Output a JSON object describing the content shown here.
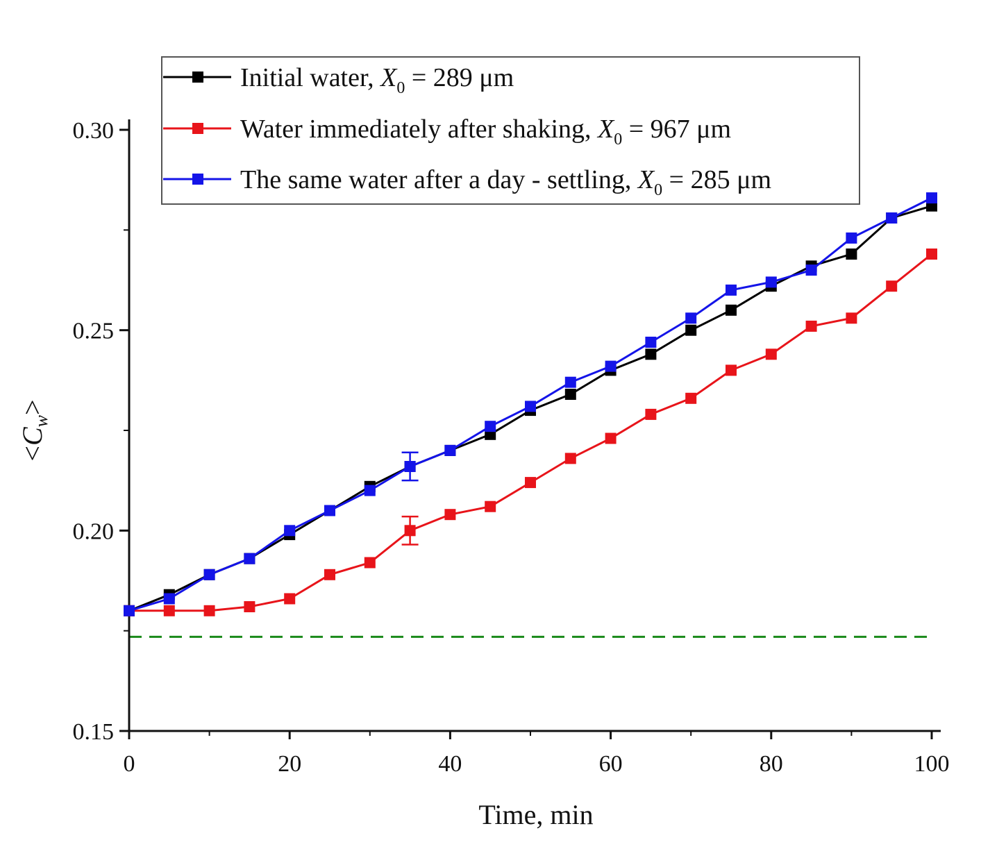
{
  "chart_data": {
    "type": "line",
    "xlabel": "Time, min",
    "ylabel": {
      "prefix": "<",
      "var": "C",
      "sub": "w",
      "suffix": ">"
    },
    "xlim": [
      0,
      100
    ],
    "ylim": [
      0.15,
      0.3
    ],
    "x_ticks": [
      "0",
      "20",
      "40",
      "60",
      "80",
      "100"
    ],
    "y_ticks": [
      "0.15",
      "0.20",
      "0.25",
      "0.30"
    ],
    "legend_position": "top",
    "x": [
      0,
      5,
      10,
      15,
      20,
      25,
      30,
      35,
      40,
      45,
      50,
      55,
      60,
      65,
      70,
      75,
      80,
      85,
      90,
      95,
      100
    ],
    "series": [
      {
        "legend": {
          "prefix": "Initial water, ",
          "var": "X",
          "sub": "0",
          "suffix": " = 289 μm"
        },
        "color": "#000000",
        "values": [
          0.18,
          0.184,
          0.189,
          0.193,
          0.199,
          0.205,
          0.211,
          0.216,
          0.22,
          0.224,
          0.23,
          0.234,
          0.24,
          0.244,
          0.25,
          0.255,
          0.261,
          0.266,
          0.269,
          0.278,
          0.281
        ],
        "error_bar": {
          "x": 35,
          "y": 0.216,
          "err": 0
        }
      },
      {
        "legend": {
          "prefix": "Water immediately after shaking, ",
          "var": "X",
          "sub": "0",
          "suffix": " = 967 μm"
        },
        "color": "#e8141a",
        "values": [
          0.18,
          0.18,
          0.18,
          0.181,
          0.183,
          0.189,
          0.192,
          0.2,
          0.204,
          0.206,
          0.212,
          0.218,
          0.223,
          0.229,
          0.233,
          0.24,
          0.244,
          0.251,
          0.253,
          0.261,
          0.269
        ],
        "error_bar": {
          "x": 35,
          "y": 0.2,
          "err": 0.0035
        }
      },
      {
        "legend": {
          "prefix": "The same water after a day - settling, ",
          "var": "X",
          "sub": "0",
          "suffix": " = 285 μm"
        },
        "color": "#1414e8",
        "values": [
          0.18,
          0.183,
          0.189,
          0.193,
          0.2,
          0.205,
          0.21,
          0.216,
          0.22,
          0.226,
          0.231,
          0.237,
          0.241,
          0.247,
          0.253,
          0.26,
          0.262,
          0.265,
          0.273,
          0.278,
          0.283
        ],
        "error_bar": {
          "x": 35,
          "y": 0.216,
          "err": 0.0035
        }
      }
    ],
    "reference_line": {
      "y": 0.1735,
      "color": "#1a8a1a",
      "style": "dashed"
    }
  }
}
